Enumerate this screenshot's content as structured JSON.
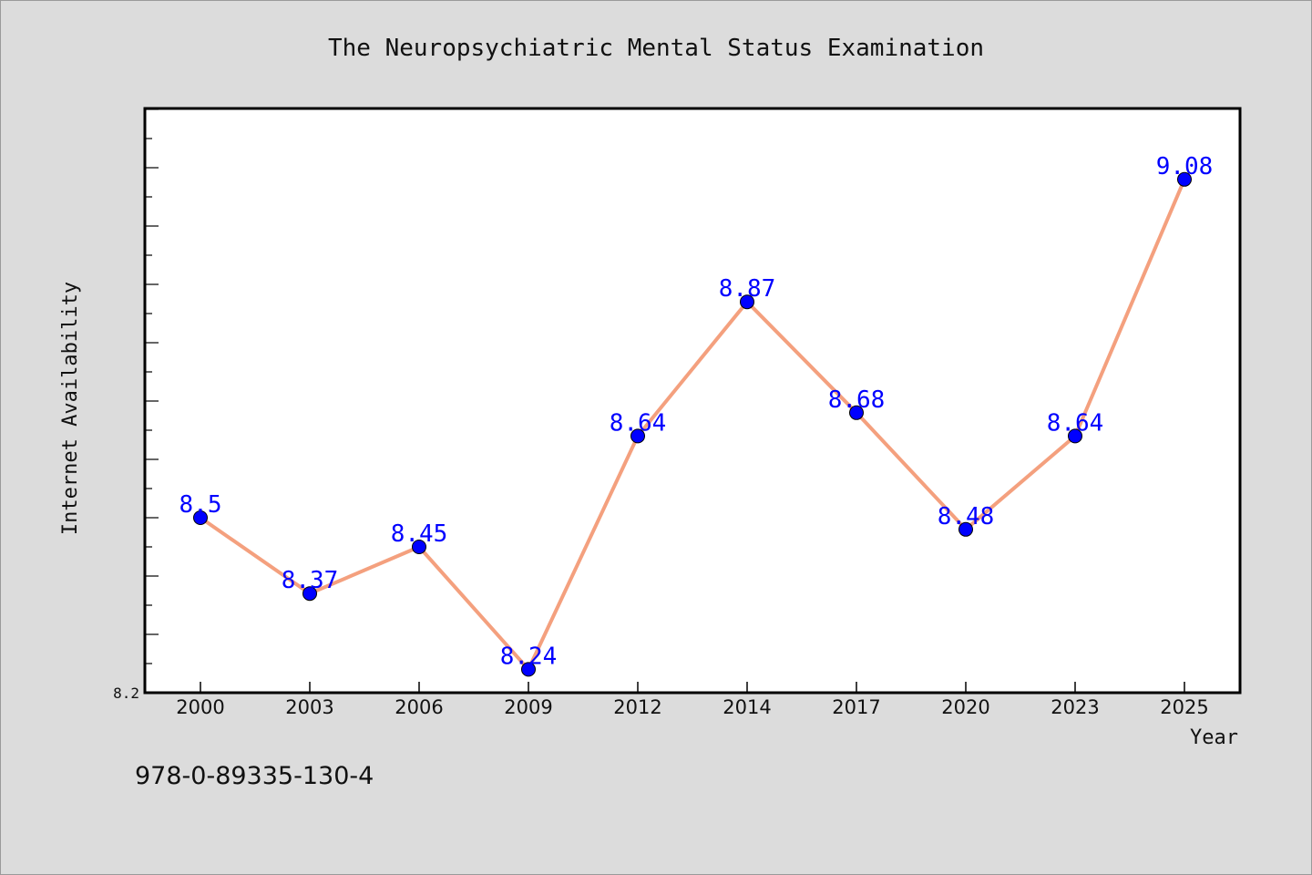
{
  "chart_data": {
    "type": "line",
    "title": "The Neuropsychiatric Mental Status Examination",
    "xlabel": "Year",
    "ylabel": "Internet Availability",
    "categories": [
      "2000",
      "2003",
      "2006",
      "2009",
      "2012",
      "2014",
      "2017",
      "2020",
      "2023",
      "2025"
    ],
    "values": [
      8.5,
      8.37,
      8.45,
      8.24,
      8.64,
      8.87,
      8.68,
      8.48,
      8.64,
      9.08
    ],
    "data_labels": [
      "8.5",
      "8.37",
      "8.45",
      "8.24",
      "8.64",
      "8.87",
      "8.68",
      "8.48",
      "8.64",
      "9.08"
    ],
    "y_tick_label": "8.2",
    "ylim": [
      8.2,
      9.2
    ],
    "grid": false,
    "legend": "none",
    "colors": {
      "line": "#f4a07e",
      "marker": "#0000ff",
      "data_label": "#0000ff",
      "plot_background": "#ffffff",
      "page_background": "#dcdcdc"
    }
  },
  "footer": {
    "isbn": "978-0-89335-130-4"
  }
}
